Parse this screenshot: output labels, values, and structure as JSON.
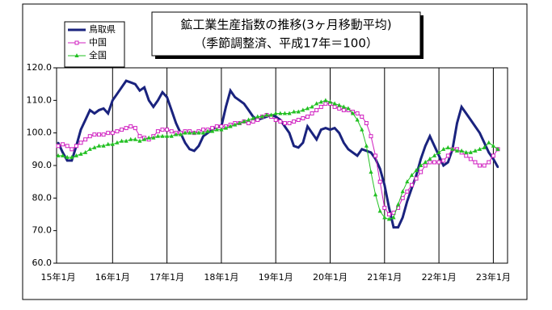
{
  "chart_data": {
    "type": "line",
    "title": "鉱工業生産指数の推移(3ヶ月移動平均)",
    "subtitle": "（季節調整済、平成17年＝100）",
    "categories": [
      "15年1月",
      null,
      null,
      null,
      null,
      null,
      null,
      null,
      null,
      null,
      null,
      null,
      "16年1月",
      null,
      null,
      null,
      null,
      null,
      null,
      null,
      null,
      null,
      null,
      null,
      "17年1月",
      null,
      null,
      null,
      null,
      null,
      null,
      null,
      null,
      null,
      null,
      null,
      "18年1月",
      null,
      null,
      null,
      null,
      null,
      null,
      null,
      null,
      null,
      null,
      null,
      "19年1月",
      null,
      null,
      null,
      null,
      null,
      null,
      null,
      null,
      null,
      null,
      null,
      "20年1月",
      null,
      null,
      null,
      null,
      null,
      null,
      null,
      null,
      null,
      null,
      null,
      "21年1月",
      null,
      null,
      null,
      null,
      null,
      null,
      null,
      null,
      null,
      null,
      null,
      "22年1月",
      null,
      null,
      null,
      null,
      null,
      null,
      null,
      null,
      null,
      null,
      null,
      "23年1月",
      null
    ],
    "series": [
      {
        "name": "鳥取県",
        "color": "#1a237e",
        "marker": "none",
        "width": 3,
        "values": [
          97,
          94,
          91.5,
          91.5,
          96,
          101,
          104,
          107,
          106,
          107,
          107.5,
          106,
          110,
          112,
          114,
          116,
          115.5,
          115,
          113,
          114,
          110,
          108,
          110,
          112.5,
          111,
          107,
          103,
          100,
          97,
          95,
          94.5,
          96,
          99,
          100,
          101,
          102,
          102,
          108,
          113,
          111,
          110,
          109,
          107,
          105,
          104,
          104.5,
          105,
          105.5,
          105,
          104,
          102,
          100,
          96,
          95.5,
          97,
          102,
          100,
          98,
          101,
          101.5,
          101,
          101.5,
          100,
          97,
          95,
          94,
          93,
          95,
          94.5,
          94,
          92,
          89,
          84,
          77,
          71,
          71,
          74,
          79,
          83,
          87,
          92,
          96,
          99,
          96,
          93,
          90,
          91,
          95,
          103,
          108,
          106,
          104,
          102,
          100,
          97,
          94,
          92,
          89.5
        ]
      },
      {
        "name": "中国",
        "color": "#d020c0",
        "marker": "square",
        "width": 1,
        "values": [
          96,
          96.5,
          96,
          95,
          96,
          97,
          98,
          99,
          99.5,
          99.5,
          99.5,
          100,
          100,
          100.5,
          101,
          101.5,
          102,
          101.5,
          99,
          98.5,
          98,
          99,
          100.5,
          101,
          101,
          100.5,
          100,
          100,
          100.5,
          100.5,
          100,
          100.5,
          101,
          101,
          101.5,
          102,
          102,
          102,
          102.5,
          103,
          103,
          103.5,
          103,
          103.5,
          104,
          105,
          105.5,
          105,
          104,
          103.5,
          103,
          103,
          103.5,
          104,
          104.5,
          105,
          106,
          107,
          108,
          109,
          109,
          108,
          107.5,
          107,
          107,
          106.5,
          106,
          105,
          103,
          99,
          93,
          85,
          77,
          75,
          75.5,
          77,
          80,
          82,
          84,
          86,
          88,
          90,
          91,
          91,
          91,
          91.5,
          93,
          95,
          95,
          94,
          93,
          92,
          91,
          90,
          90,
          91,
          93,
          95
        ]
      },
      {
        "name": "全国",
        "color": "#22c022",
        "marker": "triangle",
        "width": 1,
        "values": [
          93,
          93,
          92.5,
          92.5,
          93,
          93.5,
          94,
          95,
          95.5,
          96,
          96,
          96.5,
          96.5,
          97,
          97.5,
          97.5,
          98,
          98,
          97.5,
          98,
          98.5,
          98.5,
          99,
          99,
          99,
          99,
          99.5,
          99.5,
          100,
          100,
          100,
          100,
          100,
          100.5,
          100.5,
          101,
          101,
          101.5,
          102,
          102.5,
          103,
          103.5,
          104,
          104.5,
          105,
          105,
          105.5,
          105.5,
          106,
          106,
          106,
          106,
          106.5,
          106.5,
          107,
          107.5,
          108,
          109,
          109.5,
          110,
          109.5,
          109,
          108.5,
          108,
          107.5,
          106,
          104,
          101,
          96,
          88,
          81,
          76,
          74,
          73.5,
          74,
          78,
          82,
          85,
          87,
          88.5,
          90,
          91,
          92,
          93,
          94,
          95,
          95.5,
          95,
          94.5,
          94.5,
          94,
          94,
          94.5,
          95,
          95.5,
          97,
          96,
          95
        ]
      }
    ],
    "ylim": [
      60,
      120
    ],
    "yticks": [
      {
        "value": 60,
        "label": "60.0"
      },
      {
        "value": 70,
        "label": "70.0"
      },
      {
        "value": 80,
        "label": "80.0"
      },
      {
        "value": 90,
        "label": "90.0"
      },
      {
        "value": 100,
        "label": "100.0"
      },
      {
        "value": 110,
        "label": "110.0"
      },
      {
        "value": 120,
        "label": "120.0"
      }
    ]
  }
}
